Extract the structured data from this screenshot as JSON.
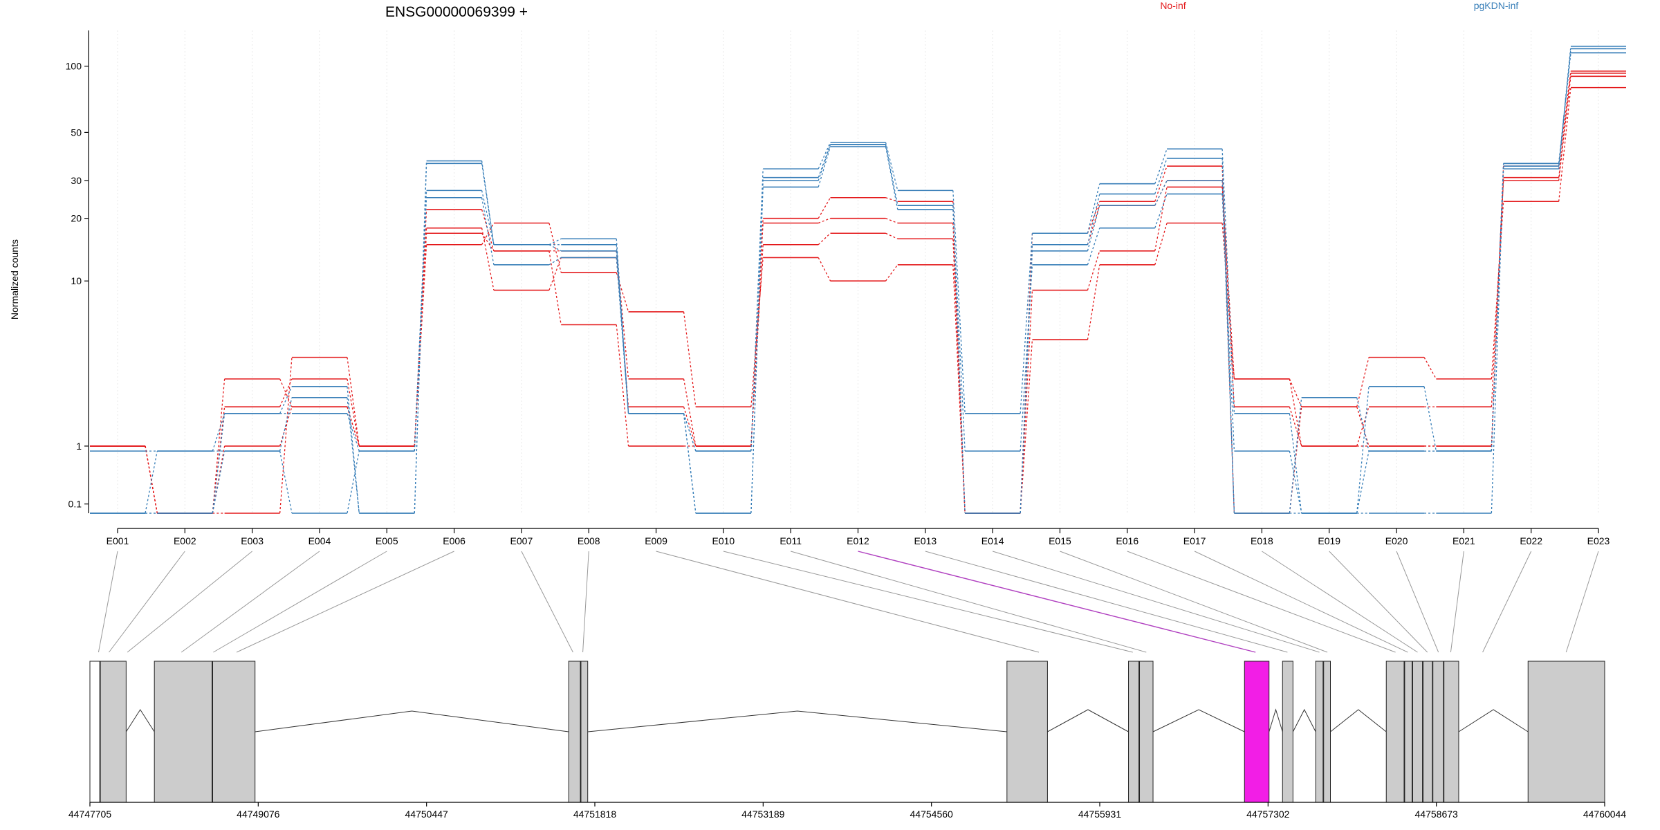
{
  "chart_data": [
    {
      "type": "line",
      "title": "ENSG00000069399 +",
      "ylabel": "Normalized counts",
      "xlabel": "",
      "scale_y": "log10(1+y)",
      "y_ticks": [
        0.1,
        1,
        10,
        20,
        30,
        50,
        100
      ],
      "grid": true,
      "legend_placement": "top",
      "categories": [
        "E001",
        "E002",
        "E003",
        "E004",
        "E005",
        "E006",
        "E007",
        "E008",
        "E009",
        "E010",
        "E011",
        "E012",
        "E013",
        "E014",
        "E015",
        "E016",
        "E017",
        "E018",
        "E019",
        "E020",
        "E021",
        "E022",
        "E023"
      ],
      "series": [
        {
          "name": "No-inf",
          "color": "#e41a1c",
          "lines": [
            [
              1,
              0,
              0,
              4,
              1,
              15,
              19,
              11,
              7,
              2,
              13,
              10,
              12,
              0,
              5,
              12,
              19,
              3,
              2,
              4,
              3,
              24,
              80
            ],
            [
              1,
              0,
              1,
              2,
              1,
              17,
              14,
              6,
              1,
              1,
              15,
              17,
              16,
              0,
              9,
              14,
              28,
              3,
              1,
              2,
              2,
              30,
              90
            ],
            [
              1,
              0,
              2,
              3,
              1,
              18,
              9,
              13,
              2,
              1,
              19,
              20,
              19,
              0,
              15,
              23,
              30,
              2,
              1,
              1,
              1,
              31,
              93
            ],
            [
              1,
              0,
              3,
              2,
              1,
              22,
              14,
              14,
              3,
              1,
              20,
              25,
              24,
              0,
              17,
              24,
              35,
              0,
              2,
              1,
              1,
              35,
              95
            ]
          ]
        },
        {
          "name": "pgKDN-inf",
          "color": "#377eb8",
          "lines": [
            [
              0.9,
              0.9,
              0.9,
              0,
              0.9,
              25,
              12,
              13,
              1.8,
              0,
              28,
              43,
              22,
              0.9,
              12,
              18,
              26,
              0.9,
              0,
              2.7,
              0.9,
              36,
              115
            ],
            [
              0,
              0.9,
              1.8,
              1.8,
              0.9,
              27,
              15,
              14,
              1.8,
              0,
              30,
              44,
              23,
              0,
              14,
              23,
              30,
              0,
              2.3,
              0.9,
              0.9,
              36,
              115
            ],
            [
              0,
              0,
              0.9,
              2.3,
              0,
              36,
              15,
              15,
              1.8,
              0.9,
              31,
              44,
              23,
              0,
              15,
              26,
              38,
              0,
              0,
              0,
              0,
              34,
              120
            ],
            [
              0,
              0,
              1.8,
              2.7,
              0,
              37,
              15,
              16,
              1.8,
              0.9,
              34,
              45,
              27,
              1.8,
              17,
              29,
              42,
              1.8,
              0,
              0.9,
              0.9,
              35,
              123
            ]
          ]
        }
      ]
    },
    {
      "type": "gene-model",
      "axis_ticks": [
        "44747705",
        "44749076",
        "44750447",
        "44751818",
        "44753189",
        "44754560",
        "44755931",
        "44757302",
        "44758673",
        "44760044"
      ],
      "axis_range": [
        44747705,
        44760044
      ],
      "highlight_exon": "E012",
      "highlight_color": "#f21ee6"
    }
  ]
}
